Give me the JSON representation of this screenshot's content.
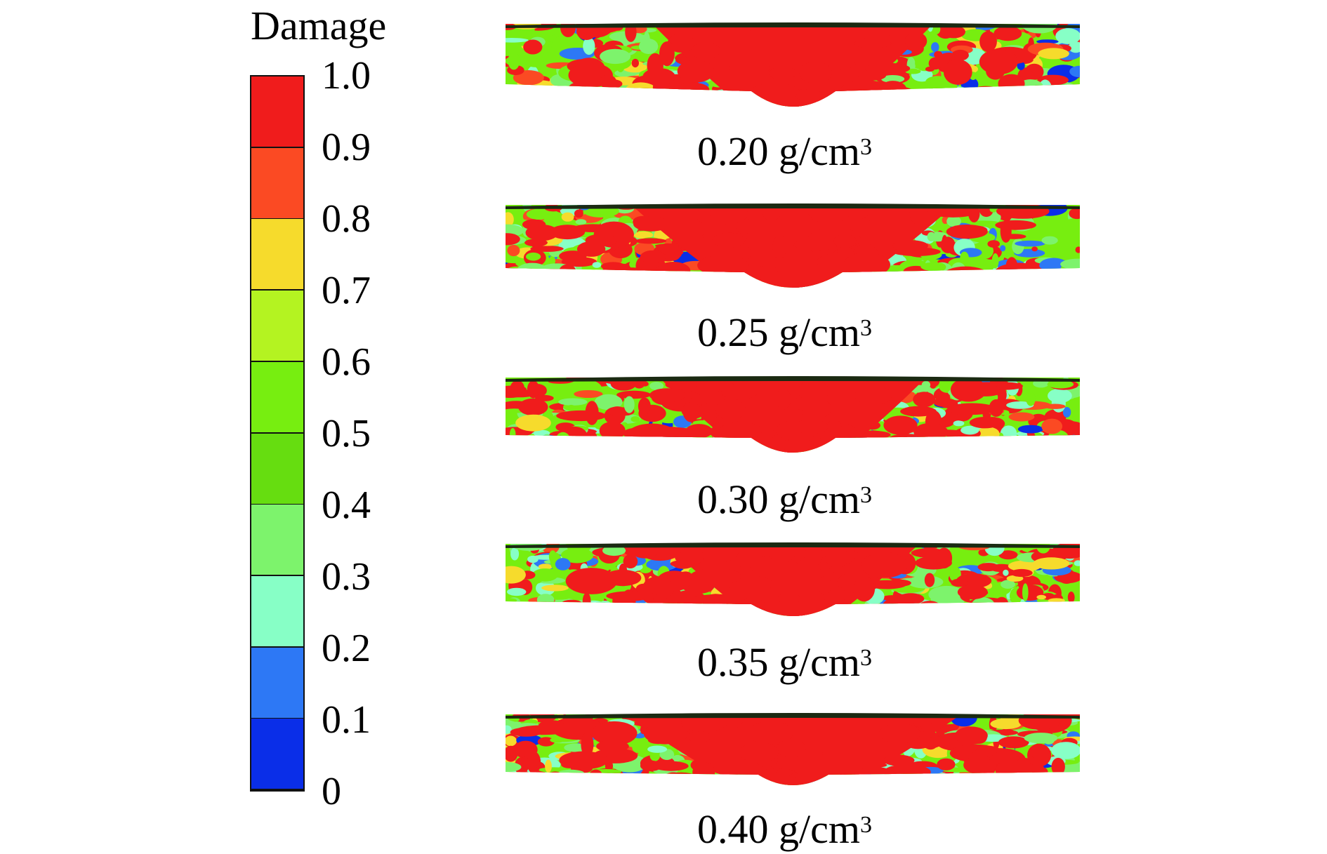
{
  "legend": {
    "title": "Damage",
    "ticks": [
      "1.0",
      "0.9",
      "0.8",
      "0.7",
      "0.6",
      "0.5",
      "0.4",
      "0.3",
      "0.2",
      "0.1",
      "0"
    ],
    "band_colors": [
      "#f01c1c",
      "#fb4a23",
      "#f6db2c",
      "#b4f321",
      "#77ee10",
      "#66dd10",
      "#7df36c",
      "#87ffc6",
      "#2d78f5",
      "#0a2ee8"
    ]
  },
  "panels": [
    {
      "density_value": "0.20 g/cm",
      "unit_superscript": "3"
    },
    {
      "density_value": "0.25 g/cm",
      "unit_superscript": "3"
    },
    {
      "density_value": "0.30 g/cm",
      "unit_superscript": "3"
    },
    {
      "density_value": "0.35 g/cm",
      "unit_superscript": "3"
    },
    {
      "density_value": "0.40 g/cm",
      "unit_superscript": "3"
    }
  ],
  "colors": {
    "damage_full": "#f01c1c",
    "damage_high": "#fb4a23",
    "damage_mid_high": "#f6db2c",
    "damage_mid": "#77ee10",
    "damage_low_mid": "#7df36c",
    "damage_low": "#87ffc6",
    "damage_very_low": "#2d78f5",
    "damage_none": "#0a2ee8",
    "surface_line": "#1b2a12"
  }
}
